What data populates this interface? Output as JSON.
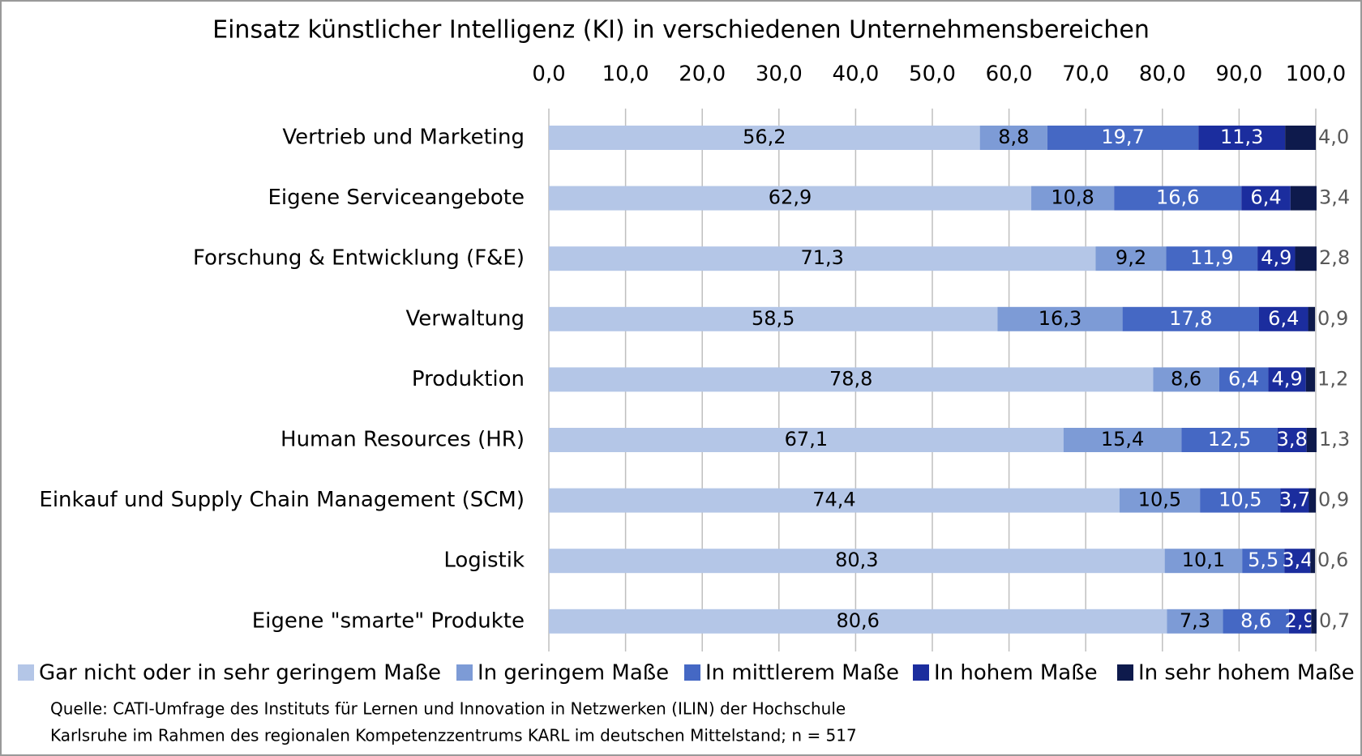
{
  "chart_data": {
    "type": "stacked-bar-horizontal",
    "title": "Einsatz künstlicher Intelligenz (KI) in verschiedenen Unternehmensbereichen",
    "categories": [
      "Vertrieb und Marketing",
      "Eigene Serviceangebote",
      "Forschung & Entwicklung (F&E)",
      "Verwaltung",
      "Produktion",
      "Human Resources (HR)",
      "Einkauf und Supply Chain Management (SCM)",
      "Logistik",
      "Eigene \"smarte\" Produkte"
    ],
    "series": [
      {
        "name": "Gar nicht oder in sehr geringem Maße",
        "color": "#b4c6e7",
        "values": [
          56.2,
          62.9,
          71.3,
          58.5,
          78.8,
          67.1,
          74.4,
          80.3,
          80.6
        ],
        "value_labels": [
          "56,2",
          "62,9",
          "71,3",
          "58,5",
          "78,8",
          "67,1",
          "74,4",
          "80,3",
          "80,6"
        ]
      },
      {
        "name": "In geringem Maße",
        "color": "#7d9bd6",
        "values": [
          8.8,
          10.8,
          9.2,
          16.3,
          8.6,
          15.4,
          10.5,
          10.1,
          7.3
        ],
        "value_labels": [
          "8,8",
          "10,8",
          "9,2",
          "16,3",
          "8,6",
          "15,4",
          "10,5",
          "10,1",
          "7,3"
        ]
      },
      {
        "name": "In mittlerem Maße",
        "color": "#4568c4",
        "values": [
          19.7,
          16.6,
          11.9,
          17.8,
          6.4,
          12.5,
          10.5,
          5.5,
          8.6
        ],
        "value_labels": [
          "19,7",
          "16,6",
          "11,9",
          "17,8",
          "6,4",
          "12,5",
          "10,5",
          "5,5",
          "8,6"
        ]
      },
      {
        "name": "In hohem Maße",
        "color": "#1b2d9e",
        "values": [
          11.3,
          6.4,
          4.9,
          6.4,
          4.9,
          3.8,
          3.7,
          3.4,
          2.9
        ],
        "value_labels": [
          "11,3",
          "6,4",
          "4,9",
          "6,4",
          "4,9",
          "3,8",
          "3,7",
          "3,4",
          "2,9"
        ]
      },
      {
        "name": "In sehr hohem Maße",
        "color": "#0e1a4c",
        "values": [
          4.0,
          3.4,
          2.8,
          0.9,
          1.2,
          1.3,
          0.9,
          0.6,
          0.7
        ],
        "value_labels": [
          "4,0",
          "3,4",
          "2,8",
          "0,9",
          "1,2",
          "1,3",
          "0,9",
          "0,6",
          "0,7"
        ]
      }
    ],
    "xlim": [
      0,
      100
    ],
    "xticks": [
      {
        "value": 0,
        "label": "0,0"
      },
      {
        "value": 10,
        "label": "10,0"
      },
      {
        "value": 20,
        "label": "20,0"
      },
      {
        "value": 30,
        "label": "30,0"
      },
      {
        "value": 40,
        "label": "40,0"
      },
      {
        "value": 50,
        "label": "50,0"
      },
      {
        "value": 60,
        "label": "60,0"
      },
      {
        "value": 70,
        "label": "70,0"
      },
      {
        "value": 80,
        "label": "80,0"
      },
      {
        "value": 90,
        "label": "90,0"
      },
      {
        "value": 100,
        "label": "100,0"
      }
    ],
    "grid": true,
    "legend": "bottom",
    "source": [
      "Quelle: CATI-Umfrage des Instituts für Lernen und Innovation in Netzwerken (ILIN) der Hochschule",
      "Karlsruhe im Rahmen des regionalen Kompetenzzentrums KARL im deutschen Mittelstand; n = 517"
    ]
  }
}
